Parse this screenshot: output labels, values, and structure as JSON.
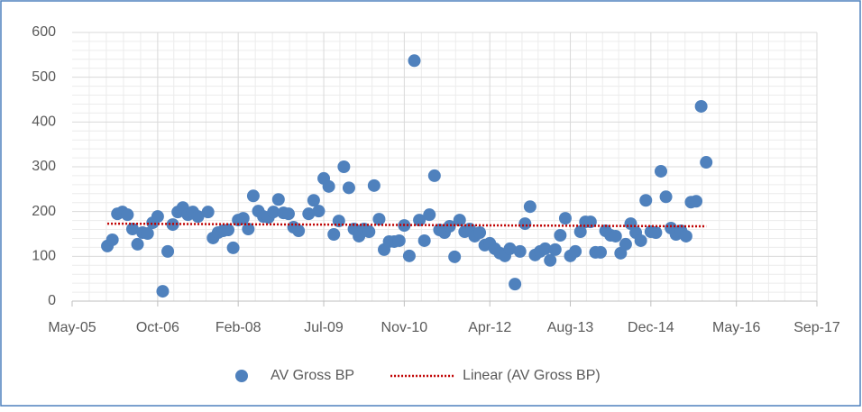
{
  "chart_data": {
    "type": "scatter",
    "xlim": [
      "2005-05",
      "2017-09"
    ],
    "xticks": [
      {
        "value": "2005-05",
        "label": "May-05"
      },
      {
        "value": "2006-10",
        "label": "Oct-06"
      },
      {
        "value": "2008-02",
        "label": "Feb-08"
      },
      {
        "value": "2009-07",
        "label": "Jul-09"
      },
      {
        "value": "2010-11",
        "label": "Nov-10"
      },
      {
        "value": "2012-04",
        "label": "Apr-12"
      },
      {
        "value": "2013-08",
        "label": "Aug-13"
      },
      {
        "value": "2014-12",
        "label": "Dec-14"
      },
      {
        "value": "2016-05",
        "label": "May-16"
      },
      {
        "value": "2017-09",
        "label": "Sep-17"
      }
    ],
    "ylim": [
      0,
      600
    ],
    "yticks": [
      0,
      100,
      200,
      300,
      400,
      500,
      600
    ],
    "grid": true,
    "minor_grid": true,
    "legend": "bottom",
    "series": [
      {
        "name": "AV Gross BP",
        "color": "#4f81bd",
        "style": "markers",
        "x": [
          "2005-12",
          "2006-01",
          "2006-02",
          "2006-03",
          "2006-04",
          "2006-05",
          "2006-06",
          "2006-07",
          "2006-08",
          "2006-09",
          "2006-10",
          "2006-11",
          "2006-12",
          "2007-01",
          "2007-02",
          "2007-03",
          "2007-04",
          "2007-05",
          "2007-06",
          "2007-08",
          "2007-09",
          "2007-10",
          "2007-11",
          "2007-12",
          "2008-01",
          "2008-02",
          "2008-03",
          "2008-04",
          "2008-05",
          "2008-06",
          "2008-07",
          "2008-08",
          "2008-09",
          "2008-10",
          "2008-11",
          "2008-12",
          "2009-01",
          "2009-02",
          "2009-04",
          "2009-05",
          "2009-06",
          "2009-07",
          "2009-08",
          "2009-09",
          "2009-10",
          "2009-11",
          "2009-12",
          "2010-01",
          "2010-02",
          "2010-03",
          "2010-04",
          "2010-05",
          "2010-06",
          "2010-07",
          "2010-08",
          "2010-09",
          "2010-10",
          "2010-11",
          "2010-12",
          "2011-01",
          "2011-02",
          "2011-03",
          "2011-04",
          "2011-05",
          "2011-06",
          "2011-07",
          "2011-08",
          "2011-09",
          "2011-10",
          "2011-11",
          "2011-12",
          "2012-01",
          "2012-02",
          "2012-03",
          "2012-04",
          "2012-05",
          "2012-06",
          "2012-07",
          "2012-08",
          "2012-09",
          "2012-10",
          "2012-11",
          "2012-12",
          "2013-01",
          "2013-02",
          "2013-03",
          "2013-04",
          "2013-05",
          "2013-06",
          "2013-07",
          "2013-08",
          "2013-09",
          "2013-10",
          "2013-11",
          "2013-12",
          "2014-01",
          "2014-02",
          "2014-03",
          "2014-04",
          "2014-05",
          "2014-06",
          "2014-07",
          "2014-08",
          "2014-09",
          "2014-10",
          "2014-11",
          "2014-12",
          "2015-01",
          "2015-02",
          "2015-03",
          "2015-04",
          "2015-05",
          "2015-06",
          "2015-07",
          "2015-08",
          "2015-09",
          "2015-10",
          "2015-11"
        ],
        "values": [
          123,
          137,
          195,
          199,
          193,
          161,
          127,
          153,
          151,
          175,
          189,
          22,
          111,
          171,
          199,
          209,
          193,
          199,
          189,
          199,
          141,
          153,
          157,
          159,
          119,
          181,
          185,
          161,
          235,
          201,
          189,
          187,
          199,
          227,
          197,
          195,
          165,
          157,
          195,
          225,
          201,
          274,
          256,
          149,
          179,
          300,
          253,
          161,
          145,
          161,
          155,
          258,
          183,
          115,
          133,
          133,
          135,
          169,
          101,
          537,
          181,
          135,
          193,
          280,
          159,
          153,
          167,
          99,
          181,
          155,
          161,
          145,
          153,
          125,
          129,
          117,
          107,
          101,
          117,
          38,
          111,
          173,
          211,
          103,
          111,
          117,
          91,
          115,
          147,
          185,
          101,
          111,
          155,
          177,
          177,
          109,
          109,
          157,
          147,
          145,
          107,
          127,
          173,
          153,
          135,
          225,
          155,
          153,
          290,
          233,
          163,
          149,
          157,
          145,
          221,
          223,
          435,
          310
        ]
      },
      {
        "name": "Linear (AV Gross BP)",
        "color": "#c00000",
        "style": "dotted",
        "x": [
          "2005-12",
          "2015-11"
        ],
        "values": [
          173,
          167
        ]
      }
    ]
  }
}
